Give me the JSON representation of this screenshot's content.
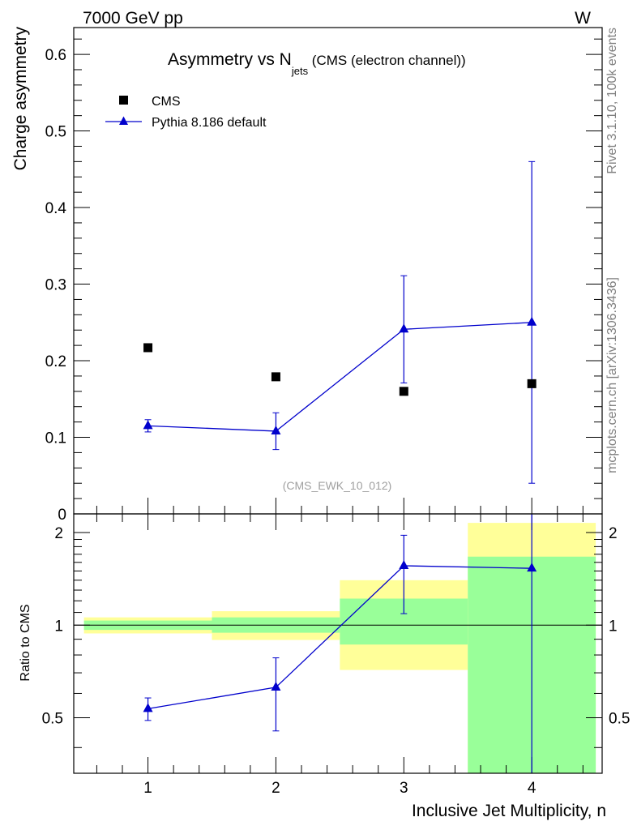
{
  "header": {
    "left": "7000 GeV pp",
    "right": "W"
  },
  "side_text": {
    "rivet": "Rivet 3.1.10,  100k events",
    "mcplots": "mcplots.cern.ch [arXiv:1306.3436]"
  },
  "colors": {
    "cms": "#000000",
    "pythia": "#0000cc",
    "band_outer": "#ffff99",
    "band_inner": "#99ff99",
    "reference_line": "#000000"
  },
  "chart_data": [
    {
      "type": "scatter",
      "title_main": "Asymmetry vs N",
      "title_sub": "jets",
      "title_rest": " (CMS (electron channel))",
      "watermark": "(CMS_EWK_10_012)",
      "ylabel": "Charge asymmetry",
      "xlabel": "",
      "xlim": [
        0.42,
        4.55
      ],
      "ylim": [
        0,
        0.635
      ],
      "yticks": [
        0,
        0.1,
        0.2,
        0.3,
        0.4,
        0.5,
        0.6
      ],
      "ytick_labels": [
        "0",
        "0.1",
        "0.2",
        "0.3",
        "0.4",
        "0.5",
        "0.6"
      ],
      "legend_position": "top-left",
      "series": [
        {
          "name": "CMS",
          "marker": "square",
          "x": [
            1,
            2,
            3,
            4
          ],
          "y": [
            0.217,
            0.179,
            0.16,
            0.17
          ]
        },
        {
          "name": "Pythia 8.186 default",
          "marker": "triangle",
          "x": [
            1,
            2,
            3,
            4
          ],
          "y": [
            0.115,
            0.108,
            0.241,
            0.25
          ],
          "err_low": [
            0.008,
            0.024,
            0.07,
            0.21
          ],
          "err_high": [
            0.008,
            0.024,
            0.07,
            0.21
          ]
        }
      ]
    },
    {
      "type": "scatter",
      "ylabel": "Ratio to CMS",
      "xlabel": "Inclusive Jet Multiplicity, n",
      "xlim": [
        0.42,
        4.55
      ],
      "ylim": [
        0.33,
        2.3
      ],
      "log_y": true,
      "yticks": [
        0.5,
        1,
        2
      ],
      "ytick_labels": [
        "0.5",
        "1",
        "2"
      ],
      "xticks": [
        1,
        2,
        3,
        4
      ],
      "xtick_labels": [
        "1",
        "2",
        "3",
        "4"
      ],
      "reference_line": 1,
      "bands": [
        {
          "x_lo": 0.5,
          "x_hi": 1.5,
          "outer": [
            0.94,
            1.06
          ],
          "inner": [
            0.965,
            1.035
          ]
        },
        {
          "x_lo": 1.5,
          "x_hi": 2.5,
          "outer": [
            0.895,
            1.11
          ],
          "inner": [
            0.945,
            1.06
          ]
        },
        {
          "x_lo": 2.5,
          "x_hi": 3.5,
          "outer": [
            0.715,
            1.4
          ],
          "inner": [
            0.865,
            1.22
          ]
        },
        {
          "x_lo": 3.5,
          "x_hi": 4.5,
          "outer": [
            0.33,
            2.15
          ],
          "inner": [
            0.33,
            1.67
          ]
        }
      ],
      "series": [
        {
          "name": "Pythia 8.186 default",
          "marker": "triangle",
          "x": [
            1,
            2,
            3,
            4
          ],
          "y": [
            0.535,
            0.628,
            1.56,
            1.53
          ],
          "err_low": [
            0.045,
            0.175,
            0.47,
            1.2
          ],
          "err_high": [
            0.045,
            0.155,
            0.4,
            0.8
          ]
        }
      ]
    }
  ]
}
